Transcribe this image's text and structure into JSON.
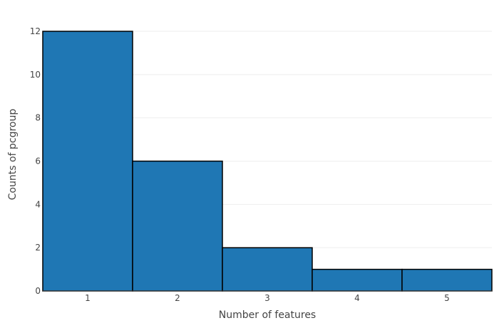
{
  "chart_data": {
    "type": "bar",
    "title": "",
    "xlabel": "Number of features",
    "ylabel": "Counts of pcgroup",
    "categories": [
      "1",
      "2",
      "3",
      "4",
      "5"
    ],
    "x": [
      1,
      2,
      3,
      4,
      5
    ],
    "values": [
      12,
      6,
      2,
      1,
      1
    ],
    "xlim": [
      0.5,
      5.5
    ],
    "ylim": [
      0,
      12
    ],
    "y_ticks": [
      0,
      2,
      4,
      6,
      8,
      10,
      12
    ],
    "grid": true,
    "legend": "none",
    "bar_color": "#1f77b4",
    "bar_outline_color": "#000000"
  }
}
